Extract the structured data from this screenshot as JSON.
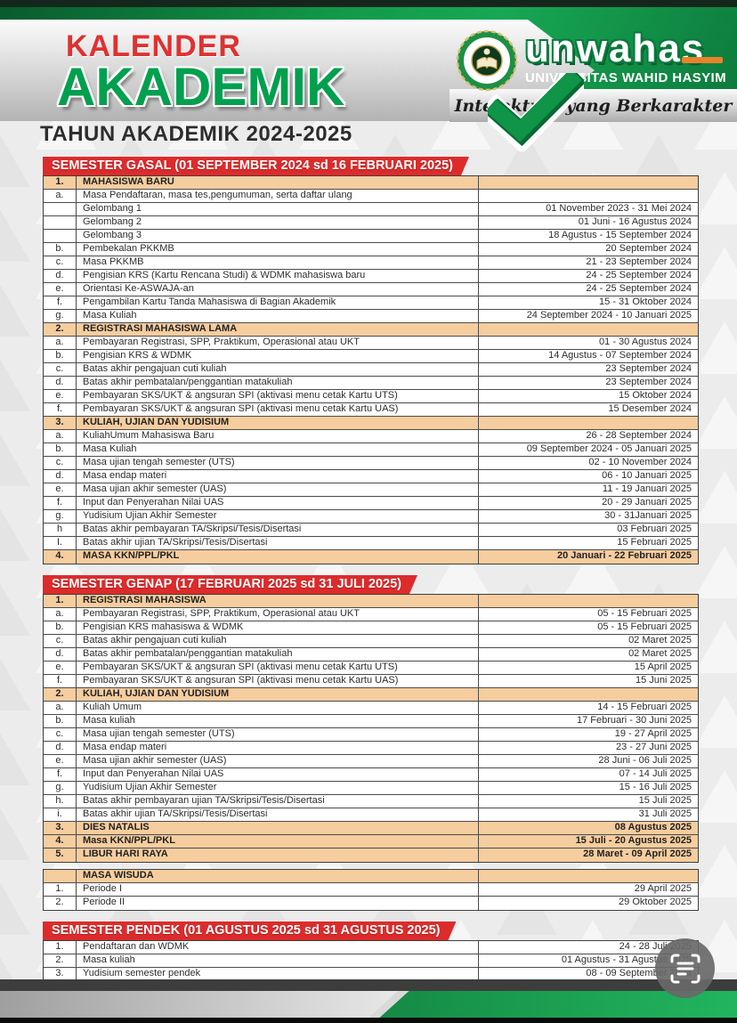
{
  "page": {
    "title_line1": "KALENDER",
    "title_line2": "AKADEMIK",
    "subtitle": "TAHUN AKADEMIK 2024-2025"
  },
  "logo": {
    "wordmark": "unwahas",
    "org_name": "UNIVERSITAS WAHID HASYIM",
    "tagline": "Intelektual yang Berkarakter",
    "seal": "unwahas-university-seal"
  },
  "colors": {
    "header_green": "#119a4a",
    "title_red": "#e03131",
    "title_green": "#00a04e",
    "banner_red": "#dd2b2b",
    "highlight_row": "#f6cd9e",
    "table_border": "#4b4b4b",
    "footer_green": "#22b55e",
    "accent_orange": "#e8822b"
  },
  "scan_button": {
    "icon": "document-scan-icon"
  },
  "sections": [
    {
      "banner": "SEMESTER GASAL (01 SEPTEMBER 2024 sd 16 FEBRUARI 2025)",
      "rows": [
        {
          "no": "1.",
          "label": "MAHASISWA BARU",
          "date": "",
          "highlight": true
        },
        {
          "no": "a.",
          "label": "Masa Pendaftaran, masa tes,pengumuman, serta daftar ulang",
          "date": ""
        },
        {
          "no": "",
          "label": "Gelombang 1",
          "date": "01 November 2023 - 31 Mei 2024"
        },
        {
          "no": "",
          "label": "Gelombang 2",
          "date": "01 Juni - 16 Agustus 2024"
        },
        {
          "no": "",
          "label": "Gelombang 3",
          "date": "18 Agustus - 15 September 2024"
        },
        {
          "no": "b.",
          "label": "Pembekalan PKKMB",
          "date": "20 September 2024"
        },
        {
          "no": "c.",
          "label": "Masa PKKMB",
          "date": "21 - 23 September 2024"
        },
        {
          "no": "d.",
          "label": "Pengisian KRS (Kartu Rencana Studi) & WDMK mahasiswa baru",
          "date": "24 - 25 September 2024"
        },
        {
          "no": "e.",
          "label": "Orientasi Ke-ASWAJA-an",
          "date": "24 - 25 September 2024"
        },
        {
          "no": "f.",
          "label": "Pengambilan Kartu Tanda Mahasiswa di Bagian Akademik",
          "date": "15 - 31 Oktober 2024"
        },
        {
          "no": "g.",
          "label": "Masa Kuliah",
          "date": "24 September 2024 - 10 Januari 2025"
        },
        {
          "no": "2.",
          "label": "REGISTRASI MAHASISWA  LAMA",
          "date": "",
          "highlight": true
        },
        {
          "no": "a.",
          "label": "Pembayaran Registrasi, SPP, Praktikum, Operasional atau UKT",
          "date": "01 - 30 Agustus 2024"
        },
        {
          "no": "b.",
          "label": "Pengisian KRS & WDMK",
          "date": "14 Agustus - 07 September 2024"
        },
        {
          "no": "c.",
          "label": "Batas akhir pengajuan cuti kuliah",
          "date": "23 September 2024"
        },
        {
          "no": "d.",
          "label": "Batas akhir pembatalan/penggantian matakuliah",
          "date": "23 September 2024"
        },
        {
          "no": "e.",
          "label": "Pembayaran SKS/UKT & angsuran SPI (aktivasi menu cetak Kartu UTS)",
          "date": "15 Oktober 2024"
        },
        {
          "no": "f.",
          "label": "Pembayaran SKS/UKT & angsuran SPI (aktivasi menu cetak Kartu UAS)",
          "date": "15 Desember 2024"
        },
        {
          "no": "3.",
          "label": "KULIAH, UJIAN DAN YUDISIUM",
          "date": "",
          "highlight": true
        },
        {
          "no": "a.",
          "label": "KuliahUmum Mahasiswa Baru",
          "date": "26 - 28 September 2024"
        },
        {
          "no": "b.",
          "label": "Masa Kuliah",
          "date": "09 September 2024  - 05 Januari 2025"
        },
        {
          "no": "c.",
          "label": "Masa ujian tengah semester (UTS)",
          "date": "02 - 10 November 2024"
        },
        {
          "no": "d.",
          "label": "Masa endap materi",
          "date": "06 - 10 Januari 2025"
        },
        {
          "no": "e.",
          "label": "Masa ujian akhir semester (UAS)",
          "date": "11 - 19 Januari 2025"
        },
        {
          "no": "f.",
          "label": "Input dan Penyerahan Nilai UAS",
          "date": "20 - 29 Januari 2025"
        },
        {
          "no": "g.",
          "label": "Yudisium Ujian Akhir Semester",
          "date": "30 - 31Januari 2025"
        },
        {
          "no": "h",
          "label": "Batas akhir pembayaran TA/Skripsi/Tesis/Disertasi",
          "date": "03 Februari 2025"
        },
        {
          "no": "I.",
          "label": "Batas akhir ujian TA/Skripsi/Tesis/Disertasi",
          "date": "15 Februari 2025"
        },
        {
          "no": "4.",
          "label": "MASA KKN/PPL/PKL",
          "date": "20 Januari - 22 Februari 2025",
          "highlight": true
        }
      ]
    },
    {
      "banner": "SEMESTER GENAP (17 FEBRUARI 2025 sd 31 JULI 2025)",
      "rows": [
        {
          "no": "1.",
          "label": "REGISTRASI MAHASISWA",
          "date": "",
          "highlight": true
        },
        {
          "no": "a.",
          "label": "Pembayaran Registrasi, SPP, Praktikum, Operasional atau UKT",
          "date": "05 - 15 Februari 2025"
        },
        {
          "no": "b.",
          "label": "Pengisian KRS mahasiswa & WDMK",
          "date": "05 - 15 Februari 2025"
        },
        {
          "no": "c.",
          "label": "Batas akhir pengajuan cuti kuliah",
          "date": "02 Maret 2025"
        },
        {
          "no": "d.",
          "label": "Batas akhir pembatalan/penggantian matakuliah",
          "date": "02 Maret 2025"
        },
        {
          "no": "e.",
          "label": "Pembayaran SKS/UKT & angsuran SPI (aktivasi menu cetak Kartu UTS)",
          "date": "15 April 2025"
        },
        {
          "no": "f.",
          "label": "Pembayaran SKS/UKT & angsuran SPI (aktivasi menu cetak Kartu UAS)",
          "date": "15 Juni 2025"
        },
        {
          "no": "2.",
          "label": "KULIAH, UJIAN DAN YUDISIUM",
          "date": "",
          "highlight": true
        },
        {
          "no": "a.",
          "label": "Kuliah Umum",
          "date": "14 - 15 Februari 2025"
        },
        {
          "no": "b.",
          "label": "Masa kuliah",
          "date": "17 Februari - 30 Juni 2025"
        },
        {
          "no": "c.",
          "label": "Masa ujian tengah semester (UTS)",
          "date": "19 - 27 April 2025"
        },
        {
          "no": "d.",
          "label": "Masa endap materi",
          "date": "23 - 27 Juni 2025"
        },
        {
          "no": "e.",
          "label": "Masa ujian akhir semester (UAS)",
          "date": "28 Juni - 06 Juli 2025"
        },
        {
          "no": "f.",
          "label": "Input dan Penyerahan Nilai UAS",
          "date": "07 - 14 Juli 2025"
        },
        {
          "no": "g.",
          "label": "Yudisium Ujian Akhir Semester",
          "date": "15 - 16 Juli 2025"
        },
        {
          "no": "h.",
          "label": "Batas akhir pembayaran ujian TA/Skripsi/Tesis/Disertasi",
          "date": "15 Juli 2025"
        },
        {
          "no": "i.",
          "label": "Batas akhir ujian TA/Skripsi/Tesis/Disertasi",
          "date": "31 Juli 2025"
        },
        {
          "no": "3.",
          "label": "DIES NATALIS",
          "date": "08 Agustus 2025",
          "highlight": true
        },
        {
          "no": "4.",
          "label": "Masa KKN/PPL/PKL",
          "date": "15 Juli - 20 Agustus 2025",
          "highlight": true
        },
        {
          "no": "5.",
          "label": "LIBUR HARI RAYA",
          "date": "28 Maret - 09 April 2025",
          "highlight": true
        }
      ]
    },
    {
      "banner": null,
      "rows": [
        {
          "no": "",
          "label": "MASA WISUDA",
          "date": "",
          "highlight": true
        },
        {
          "no": "1.",
          "label": "Periode I",
          "date": "29 April 2025"
        },
        {
          "no": "2.",
          "label": "Periode II",
          "date": "29 Oktober 2025"
        }
      ]
    },
    {
      "banner": "SEMESTER PENDEK (01 AGUSTUS 2025 sd 31 AGUSTUS 2025)",
      "rows": [
        {
          "no": "1.",
          "label": "Pendaftaran dan WDMK",
          "date": "24 - 28 Juli 2025"
        },
        {
          "no": "2.",
          "label": "Masa kuliah",
          "date": "01 Agustus - 31 Agustus 2025"
        },
        {
          "no": "3.",
          "label": "Yudisium semester pendek",
          "date": "08 - 09 September 2025"
        }
      ]
    }
  ]
}
